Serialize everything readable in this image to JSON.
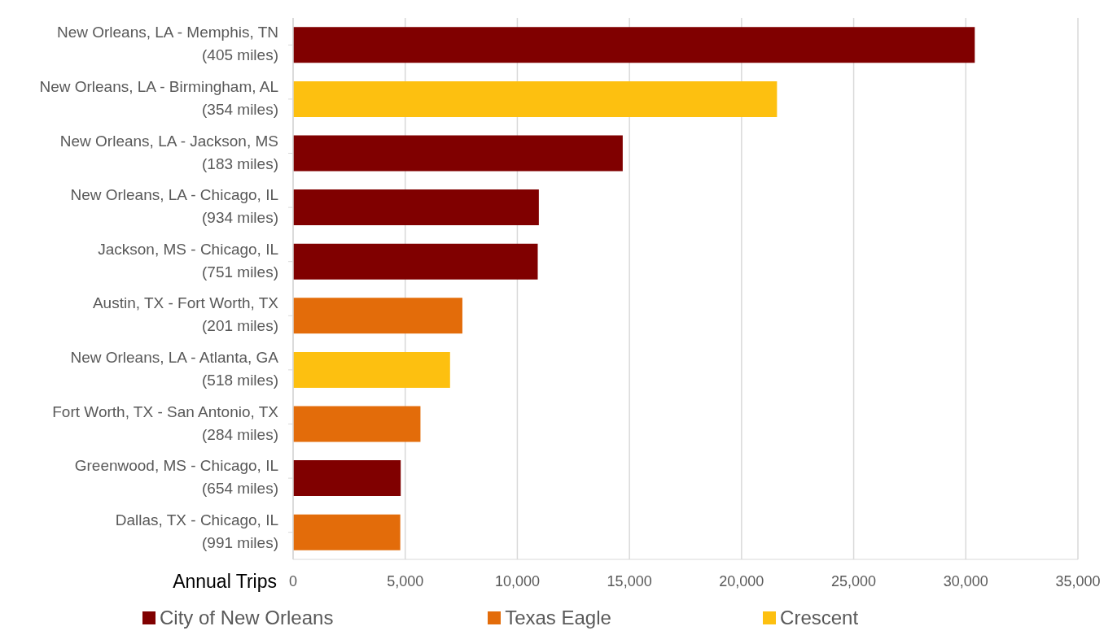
{
  "chart_data": {
    "type": "bar",
    "orientation": "horizontal",
    "stacked": true,
    "xlabel": "Annual Trips",
    "categories": [
      "New Orleans, LA - Memphis, TN\n(405 miles)",
      "New Orleans, LA - Birmingham, AL\n(354 miles)",
      "New Orleans, LA - Jackson, MS\n(183 miles)",
      "New Orleans, LA - Chicago, IL\n(934 miles)",
      "Jackson, MS - Chicago, IL\n(751 miles)",
      "Austin, TX - Fort Worth, TX\n(201 miles)",
      "New Orleans, LA - Atlanta, GA\n(518 miles)",
      "Fort Worth, TX - San Antonio, TX\n(284 miles)",
      "Greenwood, MS - Chicago, IL\n(654 miles)",
      "Dallas, TX - Chicago, IL\n(991 miles)"
    ],
    "series": [
      {
        "name": "City of New Orleans",
        "color": "#800000",
        "values": [
          30400,
          null,
          14700,
          10960,
          10910,
          null,
          null,
          null,
          4800,
          null
        ]
      },
      {
        "name": "Texas Eagle",
        "color": "#e36c0a",
        "values": [
          null,
          null,
          null,
          null,
          null,
          7550,
          null,
          5680,
          null,
          4780
        ]
      },
      {
        "name": "Crescent",
        "color": "#fdc010",
        "values": [
          null,
          21580,
          null,
          null,
          null,
          null,
          7000,
          null,
          null,
          null
        ]
      }
    ],
    "xlim": [
      0,
      35000
    ],
    "xticks": [
      {
        "value": 0,
        "label": "0"
      },
      {
        "value": 5000,
        "label": "5,000"
      },
      {
        "value": 10000,
        "label": "10,000"
      },
      {
        "value": 15000,
        "label": "15,000"
      },
      {
        "value": 20000,
        "label": "20,000"
      },
      {
        "value": 25000,
        "label": "25,000"
      },
      {
        "value": 30000,
        "label": "30,000"
      },
      {
        "value": 35000,
        "label": "35,000"
      }
    ],
    "grid": "x",
    "legend": "bottom"
  }
}
